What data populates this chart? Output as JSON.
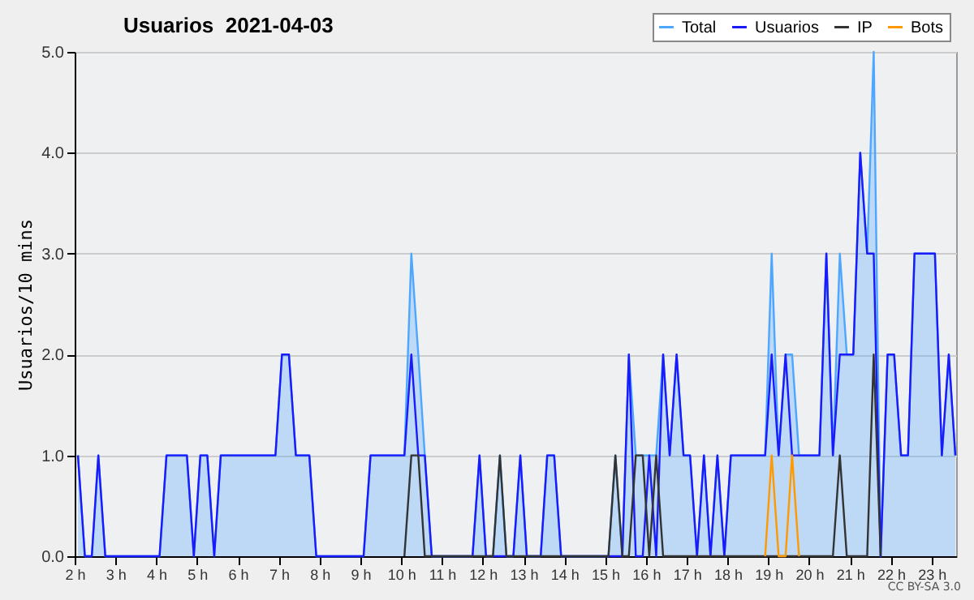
{
  "chart_data": {
    "type": "line",
    "title": "Usuarios  2021-04-03",
    "ylabel": "Usuarios/10 mins",
    "annotations": [
      "CC BY-SA 3.0"
    ],
    "xlim": [
      2,
      23.6
    ],
    "ylim": [
      0,
      5
    ],
    "xticks": [
      {
        "value": 2,
        "label": "2 h"
      },
      {
        "value": 3,
        "label": "3 h"
      },
      {
        "value": 4,
        "label": "4 h"
      },
      {
        "value": 5,
        "label": "5 h"
      },
      {
        "value": 6,
        "label": "6 h"
      },
      {
        "value": 7,
        "label": "7 h"
      },
      {
        "value": 8,
        "label": "8 h"
      },
      {
        "value": 9,
        "label": "9 h"
      },
      {
        "value": 10,
        "label": "10 h"
      },
      {
        "value": 11,
        "label": "11 h"
      },
      {
        "value": 12,
        "label": "12 h"
      },
      {
        "value": 13,
        "label": "13 h"
      },
      {
        "value": 14,
        "label": "14 h"
      },
      {
        "value": 15,
        "label": "15 h"
      },
      {
        "value": 16,
        "label": "16 h"
      },
      {
        "value": 17,
        "label": "17 h"
      },
      {
        "value": 18,
        "label": "18 h"
      },
      {
        "value": 19,
        "label": "19 h"
      },
      {
        "value": 20,
        "label": "20 h"
      },
      {
        "value": 21,
        "label": "21 h"
      },
      {
        "value": 22,
        "label": "22 h"
      },
      {
        "value": 23,
        "label": "23 h"
      }
    ],
    "yticks": [
      {
        "value": 0,
        "label": "0.0"
      },
      {
        "value": 1,
        "label": "1.0"
      },
      {
        "value": 2,
        "label": "2.0"
      },
      {
        "value": 3,
        "label": "3.0"
      },
      {
        "value": 4,
        "label": "4.0"
      },
      {
        "value": 5,
        "label": "5.0"
      }
    ],
    "grid": "y",
    "legend": "top right",
    "series": [
      {
        "name": "Total",
        "type": "area",
        "color": "#4da6ff",
        "x": [
          2.08,
          2.25,
          2.42,
          2.58,
          2.75,
          4.08,
          4.25,
          4.75,
          4.92,
          5.08,
          5.25,
          5.42,
          5.58,
          6.92,
          7.08,
          7.25,
          7.42,
          7.75,
          7.92,
          9.08,
          9.25,
          10.08,
          10.25,
          10.42,
          10.58,
          10.75,
          11.75,
          11.92,
          12.08,
          12.25,
          12.42,
          12.58,
          12.75,
          12.92,
          13.08,
          13.42,
          13.58,
          13.75,
          13.92,
          15.08,
          15.25,
          15.42,
          15.58,
          15.75,
          16.25,
          16.42,
          16.58,
          16.75,
          16.92,
          17.08,
          17.25,
          17.42,
          17.58,
          17.75,
          17.92,
          18.08,
          18.92,
          19.08,
          19.25,
          19.42,
          19.58,
          19.75,
          20.25,
          20.42,
          20.58,
          20.75,
          20.92,
          21.08,
          21.25,
          21.42,
          21.58,
          21.75,
          21.92,
          22.08,
          22.25,
          22.42,
          22.58,
          23.08,
          23.25,
          23.42,
          23.58
        ],
        "values": [
          1,
          0,
          0,
          1,
          0,
          0,
          1,
          1,
          0,
          1,
          1,
          0,
          1,
          1,
          2,
          2,
          1,
          1,
          0,
          0,
          1,
          1,
          3,
          2,
          1,
          0,
          0,
          1,
          0,
          0,
          1,
          0,
          0,
          1,
          0,
          0,
          1,
          1,
          0,
          0,
          1,
          0,
          2,
          1,
          1,
          2,
          1,
          2,
          1,
          1,
          0,
          1,
          0,
          1,
          0,
          1,
          1,
          3,
          1,
          2,
          2,
          1,
          1,
          3,
          1,
          3,
          2,
          2,
          4,
          3,
          5,
          0,
          2,
          2,
          1,
          1,
          3,
          3,
          1,
          2,
          1
        ]
      },
      {
        "name": "Usuarios",
        "color": "#1a1aff",
        "x": [
          2.08,
          2.25,
          2.42,
          2.58,
          2.75,
          4.08,
          4.25,
          4.75,
          4.92,
          5.08,
          5.25,
          5.42,
          5.58,
          6.92,
          7.08,
          7.25,
          7.42,
          7.75,
          7.92,
          9.08,
          9.25,
          10.08,
          10.25,
          10.42,
          10.58,
          10.75,
          11.75,
          11.92,
          12.08,
          12.75,
          12.92,
          13.08,
          13.42,
          13.58,
          13.75,
          13.92,
          15.42,
          15.58,
          15.75,
          15.92,
          16.08,
          16.25,
          16.42,
          16.58,
          16.75,
          16.92,
          17.08,
          17.25,
          17.42,
          17.58,
          17.75,
          17.92,
          18.08,
          18.92,
          19.08,
          19.25,
          19.42,
          19.58,
          20.25,
          20.42,
          20.58,
          20.75,
          21.08,
          21.25,
          21.42,
          21.58,
          21.75,
          21.92,
          22.08,
          22.25,
          22.42,
          22.58,
          23.08,
          23.25,
          23.42,
          23.58
        ],
        "values": [
          1,
          0,
          0,
          1,
          0,
          0,
          1,
          1,
          0,
          1,
          1,
          0,
          1,
          1,
          2,
          2,
          1,
          1,
          0,
          0,
          1,
          1,
          2,
          1,
          1,
          0,
          0,
          1,
          0,
          0,
          1,
          0,
          0,
          1,
          1,
          0,
          0,
          2,
          0,
          0,
          1,
          0,
          2,
          1,
          2,
          1,
          1,
          0,
          1,
          0,
          1,
          0,
          1,
          1,
          2,
          1,
          2,
          1,
          1,
          3,
          1,
          2,
          2,
          4,
          3,
          3,
          0,
          2,
          2,
          1,
          1,
          3,
          3,
          1,
          2,
          1
        ]
      },
      {
        "name": "IP",
        "color": "#333333",
        "x": [
          10.08,
          10.25,
          10.42,
          10.58,
          12.25,
          12.42,
          12.58,
          15.08,
          15.25,
          15.42,
          15.58,
          15.75,
          15.92,
          16.08,
          16.25,
          16.42,
          20.58,
          20.75,
          20.92,
          21.42,
          21.58,
          21.75
        ],
        "values": [
          0,
          1,
          1,
          0,
          0,
          1,
          0,
          0,
          1,
          0,
          0,
          1,
          1,
          0,
          1,
          0,
          0,
          1,
          0,
          0,
          2,
          0
        ]
      },
      {
        "name": "Bots",
        "color": "#ff9900",
        "x": [
          18.92,
          19.08,
          19.25,
          19.42,
          19.58,
          19.75
        ],
        "values": [
          0,
          1,
          0,
          0,
          1,
          0
        ]
      }
    ]
  }
}
